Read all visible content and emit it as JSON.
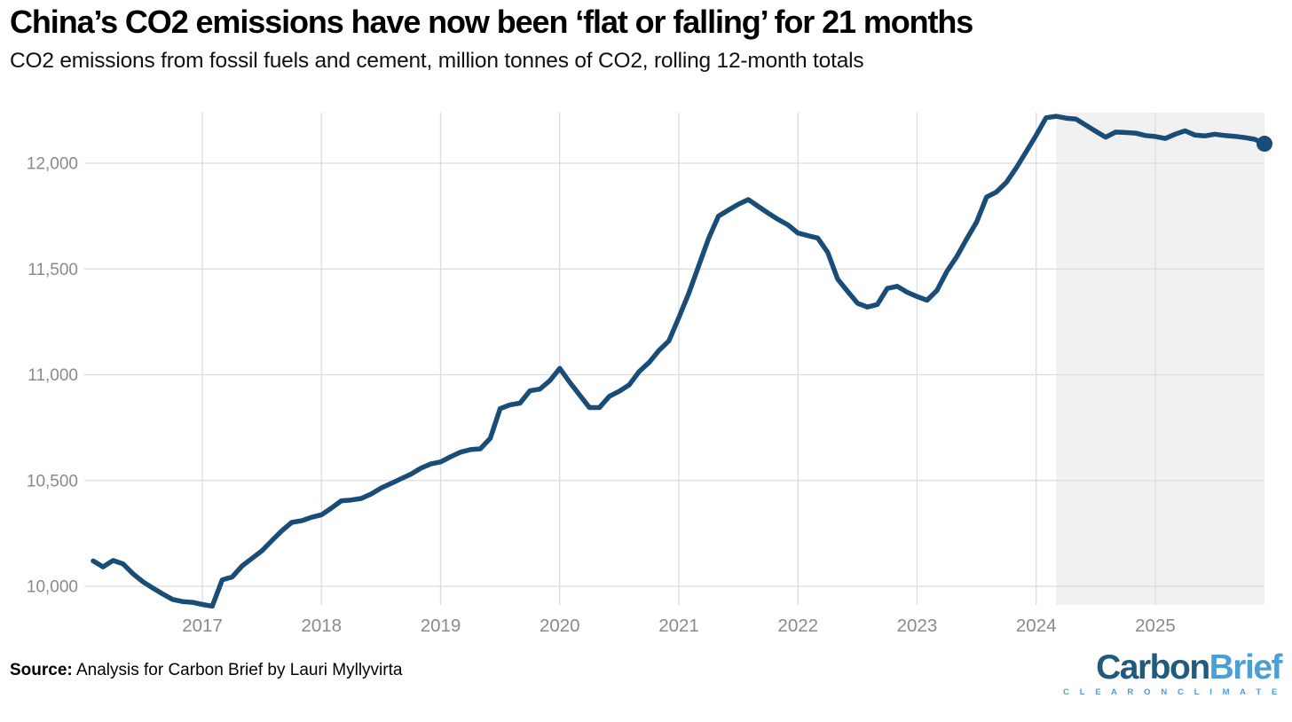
{
  "header": {
    "title": "China’s CO2 emissions have now been ‘flat or falling’ for 21 months",
    "subtitle": "CO2 emissions from fossil fuels and cement, million tonnes of CO2, rolling 12-month totals"
  },
  "footer": {
    "source_label": "Source:",
    "source_text": " Analysis for Carbon Brief by Lauri Myllyvirta"
  },
  "logo": {
    "word_dark": "Carbon",
    "word_light": "Brief",
    "tagline": "C L E A R   O N   C L I M A T E",
    "color_dark": "#205a7d",
    "color_light": "#4d9ed5"
  },
  "chart_data": {
    "type": "line",
    "title": "China’s CO2 emissions have now been ‘flat or falling’ for 21 months",
    "subtitle": "CO2 emissions from fossil fuels and cement, million tonnes of CO2, rolling 12-month totals",
    "ylabel": "million tonnes CO2, rolling 12-month total",
    "ylim": [
      9900,
      12240
    ],
    "grid": "both",
    "legend": "none",
    "months": [
      "2016-02",
      "2016-03",
      "2016-04",
      "2016-05",
      "2016-06",
      "2016-07",
      "2016-08",
      "2016-09",
      "2016-10",
      "2016-11",
      "2016-12",
      "2017-01",
      "2017-02",
      "2017-03",
      "2017-04",
      "2017-05",
      "2017-06",
      "2017-07",
      "2017-08",
      "2017-09",
      "2017-10",
      "2017-11",
      "2017-12",
      "2018-01",
      "2018-02",
      "2018-03",
      "2018-04",
      "2018-05",
      "2018-06",
      "2018-07",
      "2018-08",
      "2018-09",
      "2018-10",
      "2018-11",
      "2018-12",
      "2019-01",
      "2019-02",
      "2019-03",
      "2019-04",
      "2019-05",
      "2019-06",
      "2019-07",
      "2019-08",
      "2019-09",
      "2019-10",
      "2019-11",
      "2019-12",
      "2020-01",
      "2020-02",
      "2020-03",
      "2020-04",
      "2020-05",
      "2020-06",
      "2020-07",
      "2020-08",
      "2020-09",
      "2020-10",
      "2020-11",
      "2020-12",
      "2021-01",
      "2021-02",
      "2021-03",
      "2021-04",
      "2021-05",
      "2021-06",
      "2021-07",
      "2021-08",
      "2021-09",
      "2021-10",
      "2021-11",
      "2021-12",
      "2022-01",
      "2022-02",
      "2022-03",
      "2022-04",
      "2022-05",
      "2022-06",
      "2022-07",
      "2022-08",
      "2022-09",
      "2022-10",
      "2022-11",
      "2022-12",
      "2023-01",
      "2023-02",
      "2023-03",
      "2023-04",
      "2023-05",
      "2023-06",
      "2023-07",
      "2023-08",
      "2023-09",
      "2023-10",
      "2023-11",
      "2023-12",
      "2024-01",
      "2024-02",
      "2024-03",
      "2024-04",
      "2024-05",
      "2024-06",
      "2024-07",
      "2024-08",
      "2024-09",
      "2024-10",
      "2024-11",
      "2024-12",
      "2025-01",
      "2025-02",
      "2025-03",
      "2025-04",
      "2025-05",
      "2025-06",
      "2025-07",
      "2025-08",
      "2025-09",
      "2025-10",
      "2025-11",
      "2025-12"
    ],
    "values": [
      10120,
      10092,
      10122,
      10106,
      10060,
      10022,
      9992,
      9964,
      9938,
      9928,
      9924,
      9914,
      9906,
      10030,
      10044,
      10096,
      10132,
      10168,
      10216,
      10262,
      10302,
      10310,
      10326,
      10338,
      10370,
      10404,
      10408,
      10415,
      10436,
      10464,
      10486,
      10508,
      10530,
      10558,
      10578,
      10588,
      10612,
      10634,
      10646,
      10650,
      10700,
      10840,
      10858,
      10866,
      10924,
      10932,
      10972,
      11030,
      10965,
      10905,
      10845,
      10845,
      10898,
      10922,
      10952,
      11015,
      11058,
      11115,
      11160,
      11270,
      11385,
      11515,
      11645,
      11750,
      11778,
      11806,
      11828,
      11796,
      11764,
      11734,
      11708,
      11670,
      11658,
      11646,
      11578,
      11452,
      11394,
      11338,
      11320,
      11332,
      11408,
      11418,
      11390,
      11370,
      11352,
      11398,
      11488,
      11558,
      11642,
      11722,
      11840,
      11864,
      11910,
      11978,
      12055,
      12132,
      12215,
      12222,
      12213,
      12209,
      12180,
      12151,
      12123,
      12147,
      12145,
      12142,
      12131,
      12126,
      12117,
      12137,
      12153,
      12133,
      12129,
      12137,
      12131,
      12127,
      12121,
      12113,
      12092
    ],
    "latest_value": 12092,
    "y_axis": {
      "ticks": [
        {
          "value": 10000,
          "label": "10,000"
        },
        {
          "value": 10500,
          "label": "10,500"
        },
        {
          "value": 11000,
          "label": "11,000"
        },
        {
          "value": 11500,
          "label": "11,500"
        },
        {
          "value": 12000,
          "label": "12,000"
        }
      ]
    },
    "x_axis": {
      "ticks": [
        {
          "month": "2017-01",
          "label": "2017"
        },
        {
          "month": "2018-01",
          "label": "2018"
        },
        {
          "month": "2019-01",
          "label": "2019"
        },
        {
          "month": "2020-01",
          "label": "2020"
        },
        {
          "month": "2021-01",
          "label": "2021"
        },
        {
          "month": "2022-01",
          "label": "2022"
        },
        {
          "month": "2023-01",
          "label": "2023"
        },
        {
          "month": "2024-01",
          "label": "2024"
        },
        {
          "month": "2025-01",
          "label": "2025"
        }
      ]
    },
    "highlight": {
      "start_month": "2024-03",
      "description": "shaded band covering the flat-or-falling period to the end of the series"
    },
    "colors": {
      "line": "#1a4c78",
      "dot": "#1a4c78",
      "highlight": "#f1f1f1",
      "grid": "#dcdcdc",
      "axis_text": "#8a8a8a"
    }
  }
}
